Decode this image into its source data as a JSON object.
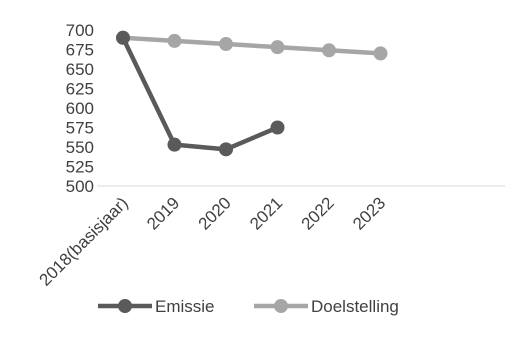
{
  "chart_data": {
    "type": "line",
    "categories": [
      "2018(basisjaar)",
      "2019",
      "2020",
      "2021",
      "2022",
      "2023"
    ],
    "series": [
      {
        "name": "Emissie",
        "color": "#5a5a5a",
        "values": [
          690,
          553,
          547,
          575,
          null,
          null
        ]
      },
      {
        "name": "Doelstelling",
        "color": "#a6a6a6",
        "values": [
          690,
          686,
          682,
          678,
          674,
          670
        ]
      }
    ],
    "yticks": [
      500,
      525,
      550,
      575,
      600,
      625,
      650,
      675,
      700
    ],
    "ylim": [
      500,
      700
    ],
    "grid": false,
    "legend": "bottom"
  }
}
